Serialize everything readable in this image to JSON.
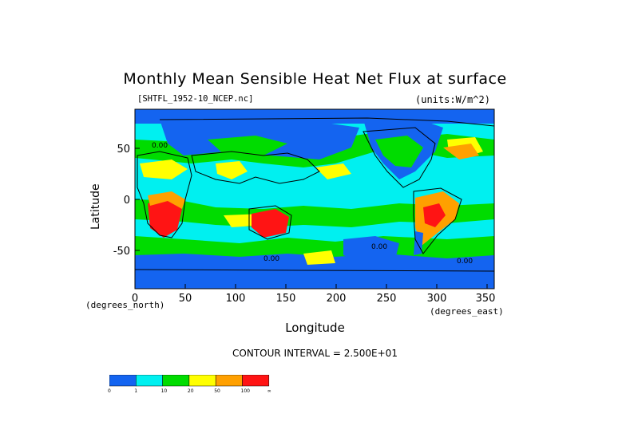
{
  "title": "Monthly Mean Sensible Heat Net Flux at surface",
  "file_label": "[SHTFL_1952-10_NCEP.nc]",
  "units_label": "(units:W/m^2)",
  "y_axis": {
    "label": "Latitude",
    "ticks": [
      "50",
      "0",
      "-50"
    ],
    "unit_note": "(degrees_north)"
  },
  "x_axis": {
    "label": "Longitude",
    "ticks": [
      "0",
      "50",
      "100",
      "150",
      "200",
      "250",
      "300",
      "350"
    ],
    "unit_note": "(degrees_east)"
  },
  "contour_interval": "CONTOUR INTERVAL = 2.500E+01",
  "contour_labels": [
    "0.00",
    "0.00",
    "0.00",
    "0.00"
  ],
  "legend": {
    "colors": [
      "#1464f0",
      "#00f0f0",
      "#00dc00",
      "#ffff00",
      "#ffa000",
      "#ff1414"
    ],
    "ticks": [
      "0",
      "1",
      "10",
      "20",
      "50",
      "100",
      "∞"
    ]
  },
  "map_colors": {
    "blue": "#1464f0",
    "cyan": "#00f0f0",
    "green": "#00dc00",
    "yellow": "#ffff00",
    "orange": "#ffa000",
    "red": "#ff1414"
  }
}
